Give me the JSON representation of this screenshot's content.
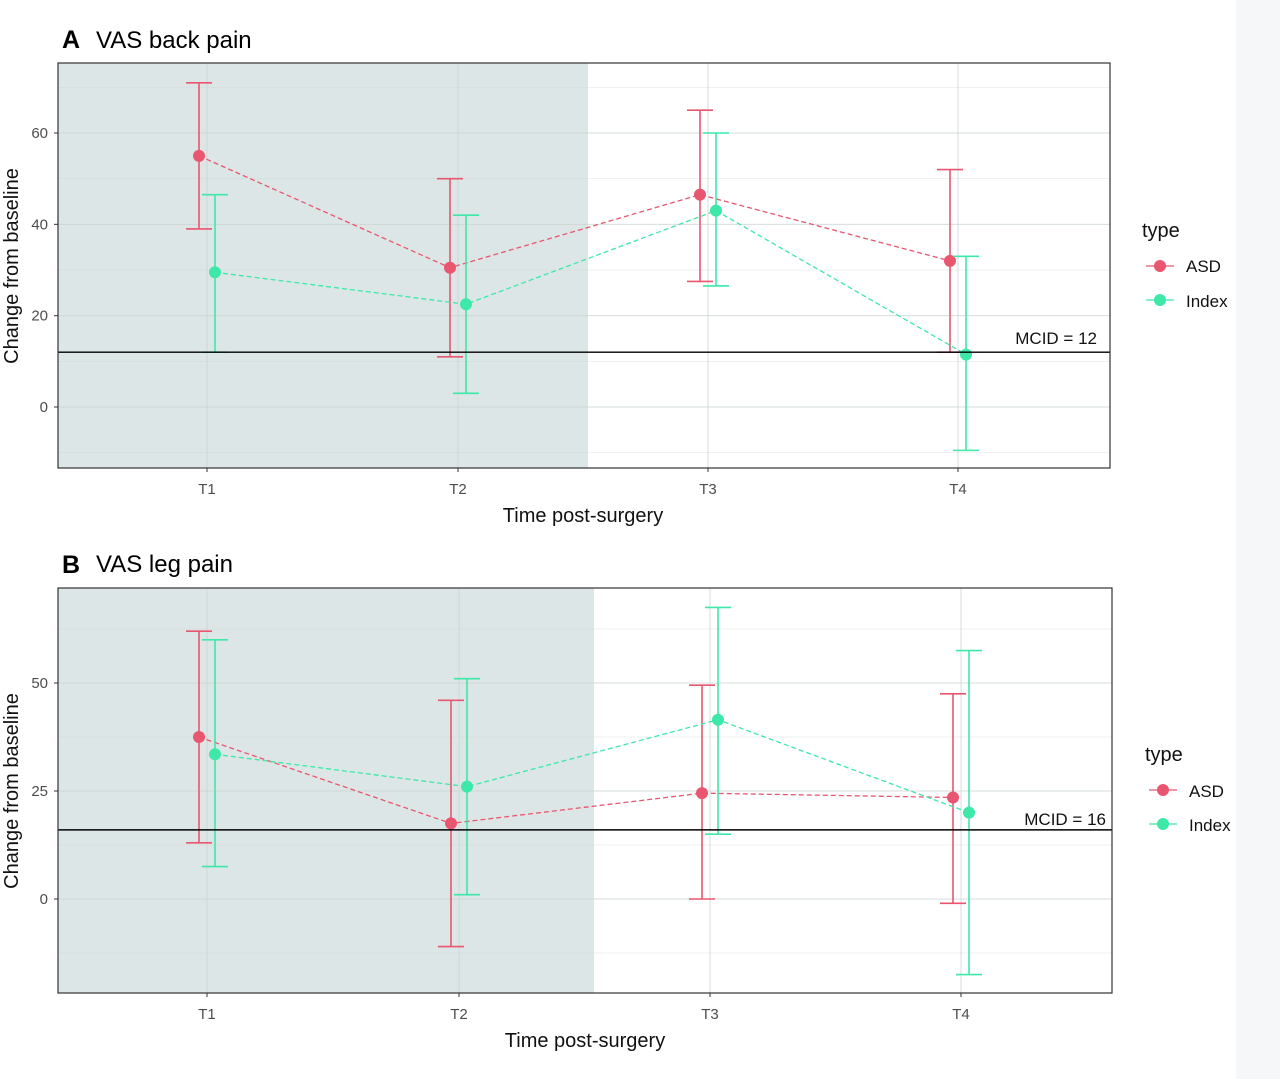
{
  "chart_data": [
    {
      "type": "line",
      "panel_tag": "A",
      "title": "VAS back pain",
      "xlabel": "Time post-surgery",
      "ylabel": "Change from baseline",
      "categories": [
        "T1",
        "T2",
        "T3",
        "T4"
      ],
      "yticks": [
        0,
        20,
        40,
        60
      ],
      "ylim": [
        -13,
        75
      ],
      "grid": true,
      "shaded_region": [
        "T1",
        "T2"
      ],
      "reference_line": {
        "value": 12,
        "label": "MCID = 12"
      },
      "legend": {
        "title": "type",
        "position": "right"
      },
      "series": [
        {
          "name": "ASD",
          "color": "#e8566f",
          "values": [
            55,
            30.5,
            46.5,
            32
          ],
          "lower": [
            39,
            11,
            27.5,
            12
          ],
          "upper": [
            71,
            50,
            65,
            52
          ]
        },
        {
          "name": "Index",
          "color": "#3de8a8",
          "values": [
            29.5,
            22.5,
            43,
            11.5
          ],
          "lower": [
            12,
            3,
            26.5,
            -9.5
          ],
          "upper": [
            46.5,
            42,
            60,
            33
          ]
        }
      ]
    },
    {
      "type": "line",
      "panel_tag": "B",
      "title": "VAS leg pain",
      "xlabel": "Time post-surgery",
      "ylabel": "Change from baseline",
      "categories": [
        "T1",
        "T2",
        "T3",
        "T4"
      ],
      "yticks": [
        0,
        25,
        50
      ],
      "ylim": [
        -22,
        72
      ],
      "grid": true,
      "shaded_region": [
        "T1",
        "T2"
      ],
      "reference_line": {
        "value": 16,
        "label": "MCID = 16"
      },
      "legend": {
        "title": "type",
        "position": "right"
      },
      "series": [
        {
          "name": "ASD",
          "color": "#e8566f",
          "values": [
            37.5,
            17.5,
            24.5,
            23.5
          ],
          "lower": [
            13,
            -11,
            0,
            -1
          ],
          "upper": [
            62,
            46,
            49.5,
            47.5
          ]
        },
        {
          "name": "Index",
          "color": "#3de8a8",
          "values": [
            33.5,
            26,
            41.5,
            20
          ],
          "lower": [
            7.5,
            1,
            15,
            -17.5
          ],
          "upper": [
            60,
            51,
            67.5,
            57.5
          ]
        }
      ]
    }
  ]
}
